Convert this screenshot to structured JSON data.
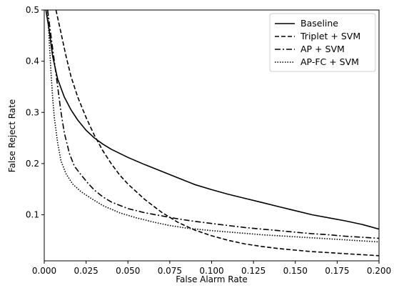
{
  "chart_data": {
    "type": "line",
    "title": "",
    "xlabel": "False Alarm Rate",
    "ylabel": "False Reject Rate",
    "xlim": [
      0.0,
      0.2
    ],
    "ylim": [
      0.01,
      0.5
    ],
    "x_ticks": [
      0.0,
      0.025,
      0.05,
      0.075,
      0.1,
      0.125,
      0.15,
      0.175,
      0.2
    ],
    "x_tick_labels": [
      "0.000",
      "0.025",
      "0.050",
      "0.075",
      "0.100",
      "0.125",
      "0.150",
      "0.175",
      "0.200"
    ],
    "y_ticks": [
      0.1,
      0.2,
      0.3,
      0.4,
      0.5
    ],
    "y_tick_labels": [
      "0.1",
      "0.2",
      "0.3",
      "0.4",
      "0.5"
    ],
    "grid": false,
    "legend_position": "top-right",
    "series": [
      {
        "name": "Baseline",
        "dash": "solid",
        "color": "#000000",
        "x": [
          0.001,
          0.003,
          0.005,
          0.008,
          0.012,
          0.016,
          0.02,
          0.025,
          0.03,
          0.035,
          0.04,
          0.05,
          0.06,
          0.07,
          0.08,
          0.09,
          0.1,
          0.11,
          0.12,
          0.13,
          0.14,
          0.15,
          0.16,
          0.17,
          0.18,
          0.19,
          0.2
        ],
        "y": [
          0.5,
          0.46,
          0.41,
          0.365,
          0.33,
          0.305,
          0.285,
          0.265,
          0.25,
          0.238,
          0.228,
          0.212,
          0.198,
          0.185,
          0.172,
          0.159,
          0.149,
          0.14,
          0.132,
          0.124,
          0.116,
          0.108,
          0.1,
          0.094,
          0.088,
          0.081,
          0.072
        ]
      },
      {
        "name": "Triplet + SVM",
        "dash": "dashed",
        "color": "#000000",
        "x": [
          0.007,
          0.01,
          0.013,
          0.016,
          0.02,
          0.025,
          0.03,
          0.035,
          0.04,
          0.045,
          0.05,
          0.06,
          0.07,
          0.08,
          0.09,
          0.1,
          0.11,
          0.12,
          0.13,
          0.14,
          0.15,
          0.16,
          0.17,
          0.18,
          0.19,
          0.2
        ],
        "y": [
          0.5,
          0.455,
          0.41,
          0.37,
          0.33,
          0.29,
          0.255,
          0.225,
          0.2,
          0.178,
          0.16,
          0.13,
          0.105,
          0.085,
          0.07,
          0.059,
          0.05,
          0.043,
          0.038,
          0.034,
          0.031,
          0.028,
          0.026,
          0.024,
          0.022,
          0.02
        ]
      },
      {
        "name": "AP + SVM",
        "dash": "dashdot",
        "color": "#000000",
        "x": [
          0.002,
          0.004,
          0.006,
          0.008,
          0.01,
          0.012,
          0.015,
          0.018,
          0.022,
          0.026,
          0.03,
          0.035,
          0.04,
          0.05,
          0.06,
          0.07,
          0.08,
          0.09,
          0.1,
          0.11,
          0.12,
          0.13,
          0.14,
          0.15,
          0.16,
          0.17,
          0.18,
          0.19,
          0.2
        ],
        "y": [
          0.5,
          0.45,
          0.4,
          0.35,
          0.3,
          0.26,
          0.22,
          0.195,
          0.178,
          0.162,
          0.148,
          0.135,
          0.125,
          0.112,
          0.104,
          0.098,
          0.092,
          0.087,
          0.083,
          0.079,
          0.075,
          0.072,
          0.069,
          0.066,
          0.063,
          0.061,
          0.058,
          0.056,
          0.054
        ]
      },
      {
        "name": "AP-FC + SVM",
        "dash": "dotted",
        "color": "#000000",
        "x": [
          0.002,
          0.003,
          0.004,
          0.005,
          0.006,
          0.008,
          0.01,
          0.013,
          0.017,
          0.022,
          0.028,
          0.035,
          0.045,
          0.055,
          0.065,
          0.075,
          0.085,
          0.1,
          0.115,
          0.13,
          0.145,
          0.16,
          0.175,
          0.19,
          0.2
        ],
        "y": [
          0.5,
          0.44,
          0.38,
          0.33,
          0.29,
          0.24,
          0.205,
          0.18,
          0.16,
          0.145,
          0.132,
          0.118,
          0.104,
          0.094,
          0.086,
          0.079,
          0.074,
          0.069,
          0.065,
          0.061,
          0.058,
          0.055,
          0.052,
          0.049,
          0.047
        ]
      }
    ]
  }
}
